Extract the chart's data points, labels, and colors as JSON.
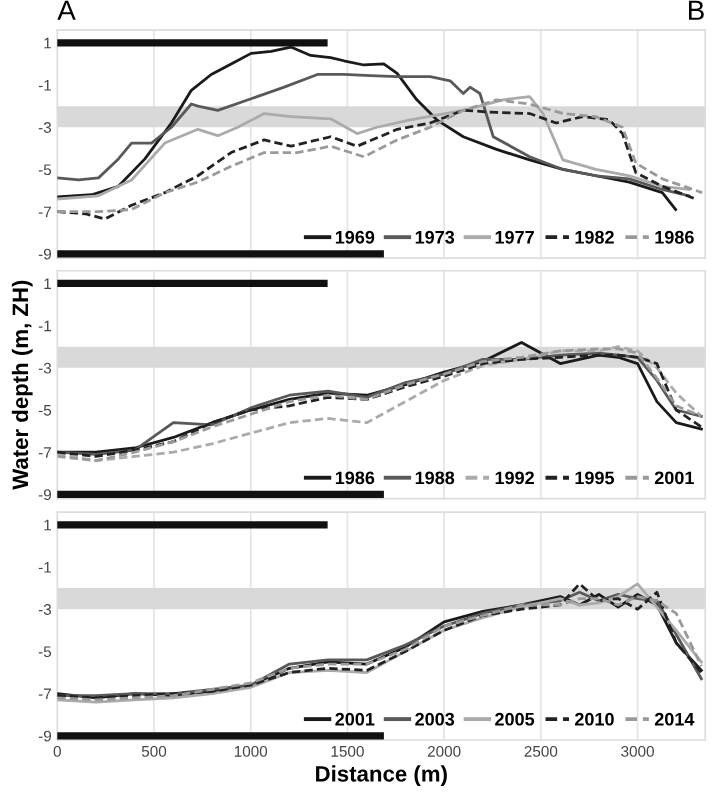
{
  "chart_data": [
    {
      "type": "line",
      "xlim": [
        0,
        3350
      ],
      "ylim": [
        -9.2,
        1.6
      ],
      "xticks": [
        0,
        500,
        1000,
        1500,
        2000,
        2500,
        3000
      ],
      "yticks": [
        1,
        -1,
        -3,
        -5,
        -7,
        -9
      ],
      "tick_labels": "y",
      "grid": "x",
      "legend": "bottom right",
      "annotations": [
        "A",
        "B"
      ],
      "bands": [
        {
          "axis": "y",
          "from": -3,
          "to": -2,
          "color": "#d9d9d9"
        }
      ],
      "series": [
        {
          "x": [
            0,
            1379
          ],
          "values": [
            1,
            1
          ],
          "color": "#111111"
        },
        {
          "x": [
            0,
            1670
          ],
          "values": [
            -9,
            -9
          ],
          "color": "#111111"
        },
        {
          "name": "1969",
          "color": "#1a1a1a",
          "line_style": "solid",
          "x": [
            0,
            178,
            316,
            453,
            590,
            693,
            796,
            899,
            1002,
            1105,
            1208,
            1310,
            1413,
            1482,
            1585,
            1688,
            1757,
            1859,
            1962,
            2099,
            2271,
            2442,
            2614,
            2785,
            2957,
            3128,
            3197
          ],
          "values": [
            -6.3,
            -6.2,
            -5.8,
            -4.5,
            -2.8,
            -1.25,
            -0.5,
            0.0,
            0.5,
            0.6,
            0.8,
            0.4,
            0.3,
            0.15,
            -0.05,
            0.0,
            -0.45,
            -1.7,
            -2.65,
            -3.45,
            -4.05,
            -4.55,
            -5.0,
            -5.3,
            -5.6,
            -6.1,
            -6.9
          ]
        },
        {
          "name": "1973",
          "color": "#595959",
          "line_style": "solid",
          "x": [
            0,
            110,
            213,
            316,
            384,
            487,
            590,
            693,
            727,
            830,
            1002,
            1173,
            1345,
            1482,
            1619,
            1757,
            1928,
            2031,
            2099,
            2134,
            2185,
            2254,
            2442,
            2614,
            2785,
            2957,
            3128,
            3265
          ],
          "values": [
            -5.4,
            -5.5,
            -5.4,
            -4.5,
            -3.75,
            -3.75,
            -3.0,
            -1.9,
            -2.0,
            -2.2,
            -1.65,
            -1.1,
            -0.5,
            -0.5,
            -0.55,
            -0.6,
            -0.6,
            -0.8,
            -1.4,
            -1.1,
            -1.4,
            -3.45,
            -4.4,
            -5.0,
            -5.3,
            -5.45,
            -5.95,
            -6.25
          ]
        },
        {
          "name": "1977",
          "color": "#ababab",
          "line_style": "solid",
          "x": [
            0,
            213,
            384,
            556,
            727,
            830,
            933,
            1070,
            1208,
            1413,
            1550,
            1653,
            1825,
            2099,
            2305,
            2442,
            2511,
            2614,
            2785,
            2957,
            3128,
            3265
          ],
          "values": [
            -6.4,
            -6.25,
            -5.5,
            -3.75,
            -3.1,
            -3.4,
            -3.0,
            -2.35,
            -2.5,
            -2.6,
            -3.3,
            -3.0,
            -2.65,
            -2.2,
            -1.7,
            -1.55,
            -2.35,
            -4.55,
            -5.0,
            -5.3,
            -5.8,
            -5.95
          ]
        },
        {
          "name": "1982",
          "color": "#222222",
          "line_style": "dashed",
          "x": [
            0,
            144,
            247,
            384,
            556,
            727,
            899,
            1070,
            1208,
            1413,
            1550,
            1757,
            1928,
            2099,
            2271,
            2442,
            2579,
            2716,
            2854,
            2922,
            2991,
            3128,
            3300
          ],
          "values": [
            -7.0,
            -7.1,
            -7.35,
            -6.7,
            -6.1,
            -5.3,
            -4.2,
            -3.6,
            -3.9,
            -3.45,
            -3.9,
            -3.1,
            -2.8,
            -2.2,
            -2.3,
            -2.35,
            -2.8,
            -2.5,
            -2.65,
            -3.3,
            -5.15,
            -5.8,
            -6.4
          ]
        },
        {
          "name": "1986",
          "color": "#9a9a9a",
          "line_style": "dashed",
          "x": [
            0,
            213,
            384,
            556,
            727,
            899,
            1070,
            1242,
            1413,
            1585,
            1757,
            1928,
            2099,
            2271,
            2442,
            2614,
            2785,
            2922,
            2991,
            3128,
            3334
          ],
          "values": [
            -7.0,
            -7.0,
            -6.9,
            -6.1,
            -5.6,
            -4.85,
            -4.2,
            -4.2,
            -3.9,
            -4.4,
            -3.6,
            -3.0,
            -2.2,
            -1.7,
            -1.9,
            -2.35,
            -2.5,
            -3.0,
            -4.7,
            -5.45,
            -6.1
          ]
        }
      ]
    },
    {
      "type": "line",
      "xlim": [
        0,
        3350
      ],
      "ylim": [
        -9.2,
        1.6
      ],
      "xticks": [
        0,
        500,
        1000,
        1500,
        2000,
        2500,
        3000
      ],
      "yticks": [
        1,
        -1,
        -3,
        -5,
        -7,
        -9
      ],
      "tick_labels": "y",
      "grid": "x",
      "legend": "bottom right",
      "ylabel": "Water depth (m, ZH)",
      "bands": [
        {
          "axis": "y",
          "from": -3,
          "to": -2,
          "color": "#d9d9d9"
        }
      ],
      "x": [
        0,
        200,
        400,
        600,
        800,
        1000,
        1200,
        1400,
        1600,
        1800,
        2000,
        2200,
        2400,
        2600,
        2800,
        2900,
        3000,
        3100,
        3200,
        3330
      ],
      "series": [
        {
          "x": [
            0,
            1379
          ],
          "values": [
            1,
            1
          ],
          "color": "#111111"
        },
        {
          "x": [
            0,
            1670
          ],
          "values": [
            -9,
            -9
          ],
          "color": "#111111"
        },
        {
          "name": "1986",
          "color": "#1a1a1a",
          "line_style": "solid",
          "values": [
            -7.0,
            -7.0,
            -6.8,
            -6.3,
            -5.6,
            -5.0,
            -4.5,
            -4.2,
            -4.3,
            -3.8,
            -3.2,
            -2.7,
            -1.8,
            -2.8,
            -2.4,
            -2.5,
            -2.8,
            -4.6,
            -5.6,
            -5.9
          ]
        },
        {
          "name": "1988",
          "color": "#595959",
          "line_style": "solid",
          "values": [
            -7.0,
            -7.1,
            -6.9,
            -5.6,
            -5.7,
            -4.9,
            -4.3,
            -4.1,
            -4.4,
            -3.7,
            -3.3,
            -2.6,
            -2.6,
            -2.4,
            -2.3,
            -2.4,
            -2.5,
            -3.6,
            -5.0,
            -5.3
          ]
        },
        {
          "name": "1992",
          "color": "#ababab",
          "line_style": "dashed",
          "values": [
            -7.1,
            -7.4,
            -7.2,
            -7.0,
            -6.6,
            -6.1,
            -5.6,
            -5.4,
            -5.6,
            -4.6,
            -3.6,
            -2.9,
            -2.6,
            -2.2,
            -2.2,
            -2.0,
            -2.2,
            -3.0,
            -4.2,
            -5.3
          ]
        },
        {
          "name": "1995",
          "color": "#222222",
          "line_style": "dashed",
          "values": [
            -7.0,
            -7.2,
            -6.9,
            -6.5,
            -5.6,
            -5.0,
            -4.8,
            -4.4,
            -4.5,
            -3.9,
            -3.4,
            -2.8,
            -2.6,
            -2.5,
            -2.4,
            -2.4,
            -2.5,
            -2.8,
            -5.0,
            -5.8
          ]
        },
        {
          "name": "2001",
          "color": "#9a9a9a",
          "line_style": "dashed",
          "values": [
            -7.2,
            -7.4,
            -7.0,
            -6.5,
            -5.8,
            -5.2,
            -4.6,
            -4.3,
            -4.5,
            -3.8,
            -3.3,
            -2.7,
            -2.5,
            -2.2,
            -2.1,
            -2.1,
            -2.3,
            -3.5,
            -4.8,
            -5.3
          ]
        }
      ]
    },
    {
      "type": "line",
      "xlim": [
        0,
        3350
      ],
      "ylim": [
        -9.2,
        1.6
      ],
      "xticks": [
        0,
        500,
        1000,
        1500,
        2000,
        2500,
        3000
      ],
      "yticks": [
        1,
        -1,
        -3,
        -5,
        -7,
        -9
      ],
      "grid": "x",
      "legend": "bottom right",
      "xlabel": "Distance (m)",
      "bands": [
        {
          "axis": "y",
          "from": -3,
          "to": -2,
          "color": "#d9d9d9"
        }
      ],
      "x": [
        0,
        200,
        400,
        600,
        800,
        1000,
        1200,
        1400,
        1600,
        1800,
        2000,
        2200,
        2400,
        2600,
        2700,
        2800,
        2900,
        3000,
        3100,
        3200,
        3330
      ],
      "series": [
        {
          "x": [
            0,
            1379
          ],
          "values": [
            1,
            1
          ],
          "color": "#111111"
        },
        {
          "x": [
            0,
            1670
          ],
          "values": [
            -9,
            -9
          ],
          "color": "#111111"
        },
        {
          "name": "2001",
          "color": "#1a1a1a",
          "line_style": "solid",
          "values": [
            -7.0,
            -7.2,
            -7.0,
            -7.1,
            -6.9,
            -6.6,
            -5.8,
            -5.5,
            -5.6,
            -4.8,
            -3.6,
            -3.1,
            -2.8,
            -2.4,
            -2.8,
            -2.3,
            -2.9,
            -2.3,
            -2.8,
            -4.6,
            -5.9
          ]
        },
        {
          "name": "2003",
          "color": "#595959",
          "line_style": "solid",
          "values": [
            -7.1,
            -7.1,
            -7.0,
            -7.0,
            -6.8,
            -6.6,
            -5.6,
            -5.4,
            -5.4,
            -4.7,
            -3.8,
            -3.2,
            -2.8,
            -2.6,
            -2.2,
            -2.6,
            -2.3,
            -2.5,
            -2.6,
            -4.2,
            -6.3
          ]
        },
        {
          "name": "2005",
          "color": "#ababab",
          "line_style": "solid",
          "values": [
            -7.3,
            -7.4,
            -7.3,
            -7.2,
            -7.0,
            -6.7,
            -6.0,
            -5.9,
            -6.0,
            -5.0,
            -4.0,
            -3.4,
            -2.9,
            -2.5,
            -2.8,
            -2.7,
            -2.4,
            -1.8,
            -2.9,
            -4.0,
            -5.5
          ]
        },
        {
          "name": "2010",
          "color": "#222222",
          "line_style": "dashed",
          "values": [
            -7.1,
            -7.2,
            -7.1,
            -7.0,
            -6.9,
            -6.6,
            -6.0,
            -5.8,
            -5.9,
            -5.0,
            -4.0,
            -3.3,
            -3.0,
            -2.8,
            -1.8,
            -2.6,
            -2.5,
            -3.0,
            -2.2,
            -4.6,
            -6.0
          ]
        },
        {
          "name": "2014",
          "color": "#9a9a9a",
          "line_style": "dashed",
          "values": [
            -7.2,
            -7.3,
            -7.2,
            -7.1,
            -6.8,
            -6.5,
            -5.8,
            -5.6,
            -5.6,
            -4.9,
            -3.8,
            -3.3,
            -2.8,
            -2.8,
            -2.5,
            -2.5,
            -2.8,
            -2.4,
            -2.6,
            -3.2,
            -5.7
          ]
        }
      ]
    }
  ]
}
